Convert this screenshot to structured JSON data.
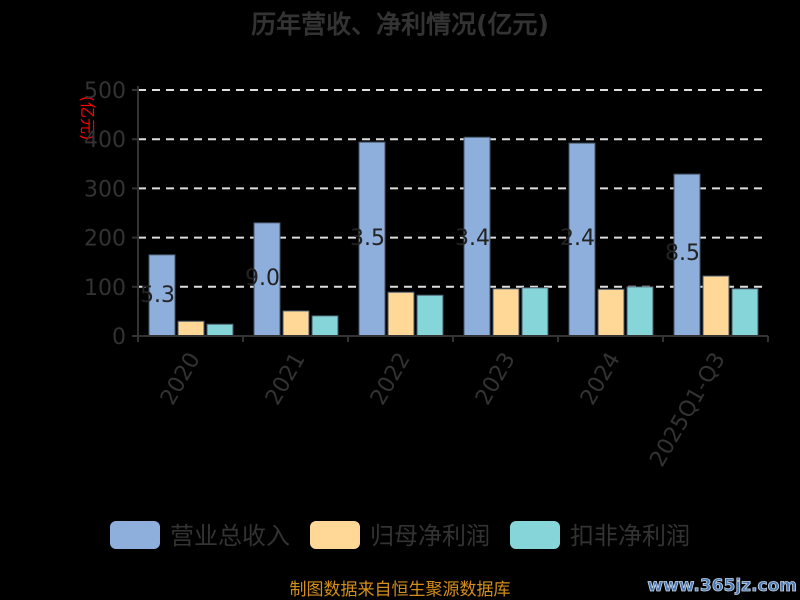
{
  "chart_data": {
    "type": "bar",
    "title": "历年营收、净利情况(亿元)",
    "ylabel": "(亿元)",
    "xlabel": "",
    "ylim": [
      0,
      500
    ],
    "yticks": [
      "0",
      "100",
      "200",
      "300",
      "400",
      "500"
    ],
    "grid": true,
    "legend_position": "bottom",
    "categories": [
      "2020",
      "2021",
      "2022",
      "2023",
      "2024",
      "2025Q1-Q3"
    ],
    "series": [
      {
        "name": "营业总收入",
        "color": "#8eaedc",
        "values": [
          165,
          230,
          394,
          404,
          392,
          329
        ]
      },
      {
        "name": "归母净利润",
        "color": "#ffd898",
        "values": [
          30,
          51,
          89,
          96,
          95,
          122
        ]
      },
      {
        "name": "扣非净利润",
        "color": "#86d6d9",
        "values": [
          24,
          41,
          83,
          98,
          100,
          96
        ]
      }
    ],
    "data_labels": [
      "5.3",
      "9.0",
      "3.5",
      "3.4",
      "2.4",
      "8.5"
    ]
  },
  "footer": {
    "source": "制图数据来自恒生聚源数据库",
    "watermark": "www.365jz.com"
  }
}
